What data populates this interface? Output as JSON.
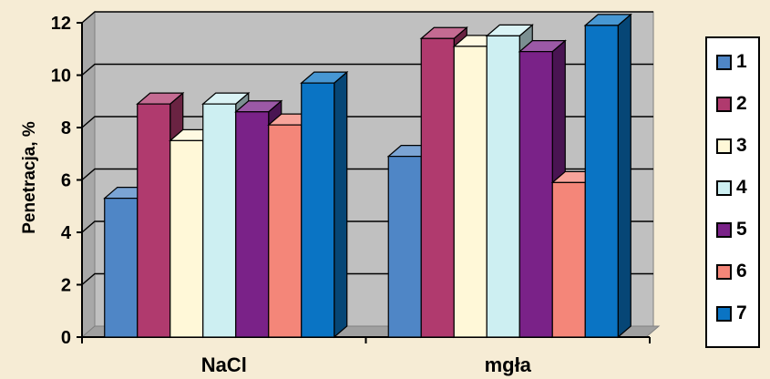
{
  "chart_data": {
    "type": "bar",
    "title": "",
    "xlabel": "",
    "ylabel": "Penetracja, %",
    "ylim": [
      0,
      12
    ],
    "yticks": [
      0,
      2,
      4,
      6,
      8,
      10,
      12
    ],
    "grid": true,
    "legend_position": "right",
    "categories": [
      "NaCl",
      "mgła"
    ],
    "series": [
      {
        "name": "1",
        "values": [
          5.3,
          6.9
        ],
        "color": "#4f86c6"
      },
      {
        "name": "2",
        "values": [
          8.9,
          11.4
        ],
        "color": "#b03a6e"
      },
      {
        "name": "3",
        "values": [
          7.5,
          11.1
        ],
        "color": "#fff8d8"
      },
      {
        "name": "4",
        "values": [
          8.9,
          11.5
        ],
        "color": "#cdeff2"
      },
      {
        "name": "5",
        "values": [
          8.6,
          10.9
        ],
        "color": "#7a2288"
      },
      {
        "name": "6",
        "values": [
          8.1,
          5.9
        ],
        "color": "#f48679"
      },
      {
        "name": "7",
        "values": [
          9.7,
          11.9
        ],
        "color": "#0a74c4"
      }
    ]
  }
}
